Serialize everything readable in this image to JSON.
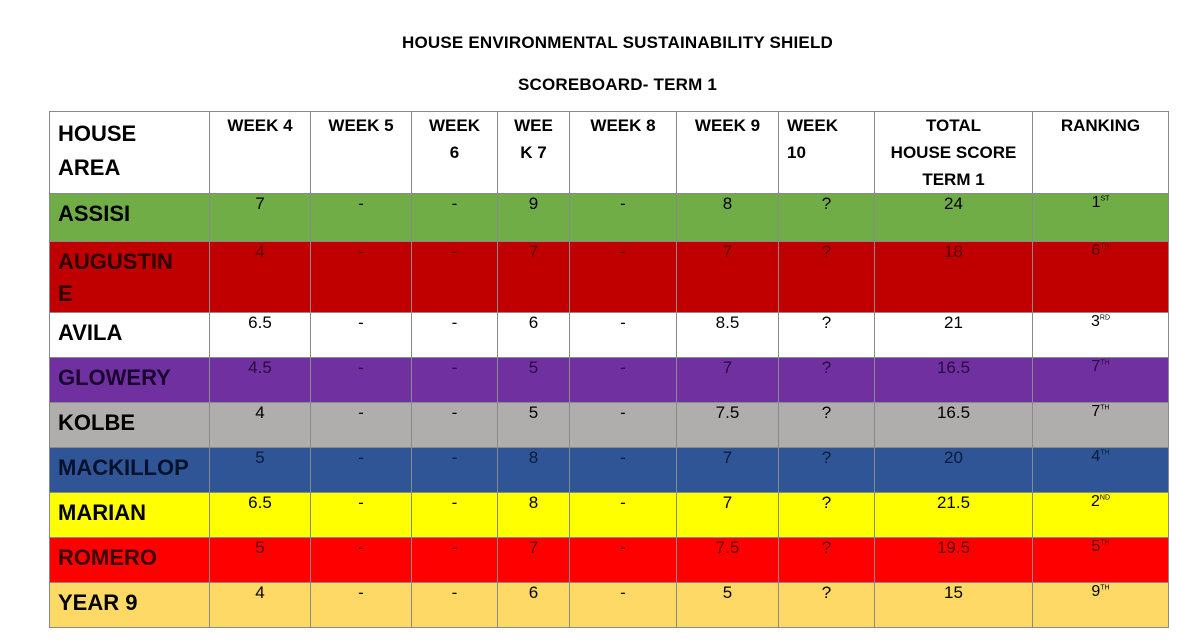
{
  "title": "HOUSE ENVIRONMENTAL SUSTAINABILITY SHIELD",
  "subtitle": "SCOREBOARD- TERM 1",
  "headers": {
    "house_line1": "HOUSE",
    "house_line2": "AREA",
    "week4": "WEEK 4",
    "week5": "WEEK 5",
    "week6_line1": "WEEK",
    "week6_line2": "6",
    "week7_line1": "WEE",
    "week7_line2": "K 7",
    "week8": "WEEK 8",
    "week9": "WEEK 9",
    "week10_line1": "WEEK",
    "week10_line2": "10",
    "total_line1": "TOTAL",
    "total_line2": "HOUSE SCORE",
    "total_line3": "TERM 1",
    "ranking": "RANKING"
  },
  "rows": [
    {
      "house_line1": "ASSISI",
      "house_line2": "",
      "w4": "7",
      "w5": "-",
      "w6": "-",
      "w7": "9",
      "w8": "-",
      "w9": "8",
      "w10": "?",
      "total": "24",
      "rank_num": "1",
      "rank_suffix": "ST"
    },
    {
      "house_line1": "AUGUSTIN",
      "house_line2": "E",
      "w4": "4",
      "w5": "-",
      "w6": "-",
      "w7": "7",
      "w8": "-",
      "w9": "7",
      "w10": "?",
      "total": "18",
      "rank_num": "6",
      "rank_suffix": "TH"
    },
    {
      "house_line1": "AVILA",
      "house_line2": "",
      "w4": "6.5",
      "w5": "-",
      "w6": "-",
      "w7": "6",
      "w8": "-",
      "w9": "8.5",
      "w10": "?",
      "total": "21",
      "rank_num": "3",
      "rank_suffix": "RD"
    },
    {
      "house_line1": "GLOWERY",
      "house_line2": "",
      "w4": "4.5",
      "w5": "-",
      "w6": "-",
      "w7": "5",
      "w8": "-",
      "w9": "7",
      "w10": "?",
      "total": "16.5",
      "rank_num": "7",
      "rank_suffix": "TH"
    },
    {
      "house_line1": "KOLBE",
      "house_line2": "",
      "w4": "4",
      "w5": "-",
      "w6": "-",
      "w7": "5",
      "w8": "-",
      "w9": "7.5",
      "w10": "?",
      "total": "16.5",
      "rank_num": "7",
      "rank_suffix": "TH"
    },
    {
      "house_line1": "MACKILLOP",
      "house_line2": "",
      "w4": "5",
      "w5": "-",
      "w6": "-",
      "w7": "8",
      "w8": "-",
      "w9": "7",
      "w10": "?",
      "total": "20",
      "rank_num": "4",
      "rank_suffix": "TH"
    },
    {
      "house_line1": "MARIAN",
      "house_line2": "",
      "w4": "6.5",
      "w5": "-",
      "w6": "-",
      "w7": "8",
      "w8": "-",
      "w9": "7",
      "w10": "?",
      "total": "21.5",
      "rank_num": "2",
      "rank_suffix": "ND"
    },
    {
      "house_line1": "ROMERO",
      "house_line2": "",
      "w4": "5",
      "w5": "-",
      "w6": "-",
      "w7": "7",
      "w8": "-",
      "w9": "7.5",
      "w10": "?",
      "total": "19.5",
      "rank_num": "5",
      "rank_suffix": "TH"
    },
    {
      "house_line1": "YEAR 9",
      "house_line2": "",
      "w4": "4",
      "w5": "-",
      "w6": "-",
      "w7": "6",
      "w8": "-",
      "w9": "5",
      "w10": "?",
      "total": "15",
      "rank_num": "9",
      "rank_suffix": "TH"
    }
  ],
  "colors": {
    "assisi": "#70ad47",
    "augustine": "#c00000",
    "avila": "#ffffff",
    "glowery": "#7030a0",
    "kolbe": "#b0adad",
    "mackillop": "#2f5597",
    "marian": "#ffff00",
    "romero": "#ff0000",
    "year9": "#ffd966"
  }
}
